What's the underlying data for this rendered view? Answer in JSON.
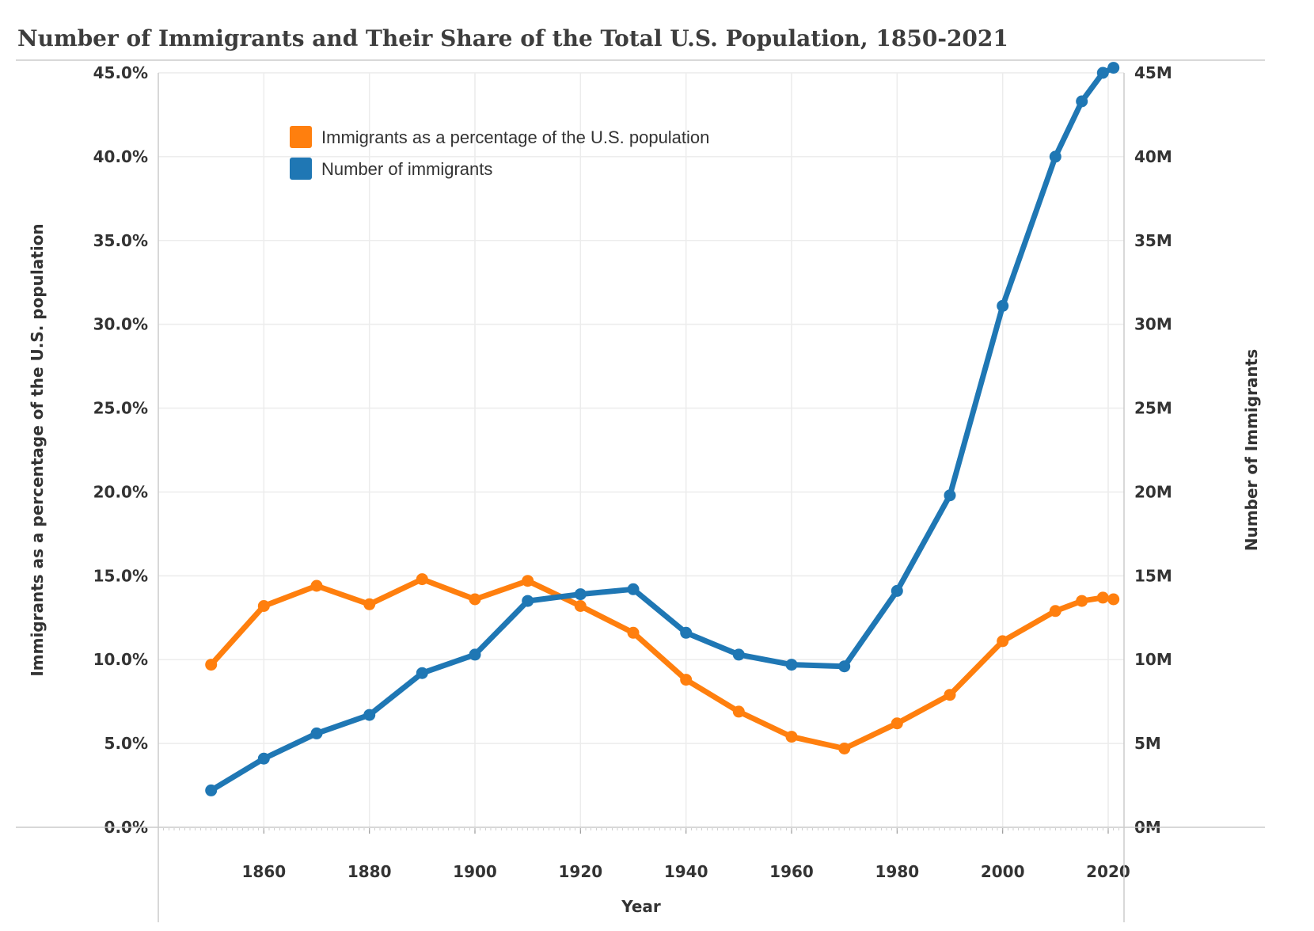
{
  "chart_data": {
    "type": "line",
    "title": "Number of Immigrants and Their Share of the Total U.S. Population, 1850-2021",
    "xlabel": "Year",
    "ylabel_left": "Immigrants as a percentage of the U.S. population",
    "ylabel_right": "Number of Immigrants",
    "x": [
      1850,
      1860,
      1870,
      1880,
      1890,
      1900,
      1910,
      1920,
      1930,
      1940,
      1950,
      1960,
      1970,
      1980,
      1990,
      2000,
      2010,
      2015,
      2019,
      2021
    ],
    "x_ticks": [
      "1860",
      "1880",
      "1900",
      "1920",
      "1940",
      "1960",
      "1980",
      "2000",
      "2020"
    ],
    "y_left_ticks": [
      "0.0%",
      "5.0%",
      "10.0%",
      "15.0%",
      "20.0%",
      "25.0%",
      "30.0%",
      "35.0%",
      "40.0%",
      "45.0%"
    ],
    "y_right_ticks": [
      "0M",
      "5M",
      "10M",
      "15M",
      "20M",
      "25M",
      "30M",
      "35M",
      "40M",
      "45M"
    ],
    "xlim": [
      1840,
      2023
    ],
    "ylim_left": [
      0,
      45
    ],
    "ylim_right": [
      0,
      45000000
    ],
    "grid": true,
    "legend_position": "top-left",
    "series": [
      {
        "name": "Immigrants as a percentage of the U.S. population",
        "axis": "left",
        "color": "#ff7f0e",
        "values": [
          9.7,
          13.2,
          14.4,
          13.3,
          14.8,
          13.6,
          14.7,
          13.2,
          11.6,
          8.8,
          6.9,
          5.4,
          4.7,
          6.2,
          7.9,
          11.1,
          12.9,
          13.5,
          13.7,
          13.6
        ]
      },
      {
        "name": "Number of immigrants",
        "axis": "right",
        "color": "#1f77b4",
        "values": [
          2200000,
          4100000,
          5600000,
          6700000,
          9200000,
          10300000,
          13500000,
          13900000,
          14200000,
          11600000,
          10300000,
          9700000,
          9600000,
          14100000,
          19800000,
          31100000,
          40000000,
          43300000,
          45000000,
          45300000
        ]
      }
    ]
  }
}
